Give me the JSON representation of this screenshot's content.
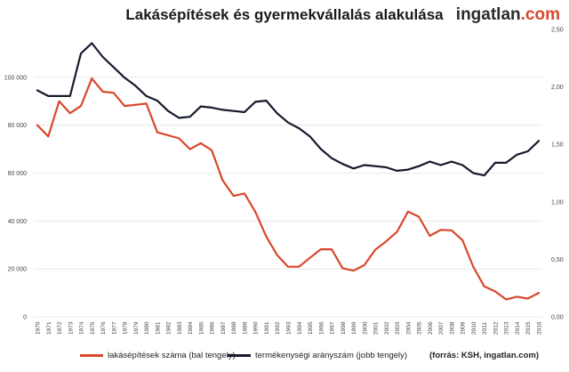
{
  "header": {
    "title": "Lakásépítések és gyermekvállalás alakulása",
    "brand_name": "ingatlan",
    "brand_dot": ".",
    "brand_tld": "com"
  },
  "legend": {
    "series1": "lakásépítések száma (bal tengely)",
    "series2": "termékenységi arányszám (jobb tengely)"
  },
  "source": "(forrás: KSH, ingatlan.com)",
  "colors": {
    "series1": "#d9472b",
    "series2": "#151a2e",
    "grid": "#e3e3e3"
  },
  "chart_data": {
    "type": "line",
    "title": "Lakásépítések és gyermekvállalás alakulása",
    "x": [
      "1970",
      "1971",
      "1972",
      "1973",
      "1974",
      "1975",
      "1976",
      "1977",
      "1978",
      "1979",
      "1980",
      "1981",
      "1982",
      "1983",
      "1984",
      "1985",
      "1986",
      "1987",
      "1988",
      "1989",
      "1990",
      "1991",
      "1992",
      "1993",
      "1994",
      "1995",
      "1996",
      "1997",
      "1998",
      "1999",
      "2000",
      "2001",
      "2002",
      "2003",
      "2004",
      "2005",
      "2006",
      "2007",
      "2008",
      "2009",
      "2010",
      "2011",
      "2012",
      "2013",
      "2014",
      "2015",
      "2016"
    ],
    "y_left": {
      "ylim": [
        0,
        120000
      ],
      "ticks": [
        0,
        20000,
        40000,
        60000,
        80000,
        100000
      ],
      "tick_labels": [
        "0",
        "20 000",
        "40 000",
        "60 000",
        "80 000",
        "100 000"
      ]
    },
    "y_right": {
      "ylim": [
        0,
        2.5
      ],
      "ticks": [
        0,
        0.5,
        1,
        1.5,
        2,
        2.5
      ],
      "tick_labels": [
        "0,00",
        "0,50",
        "1,00",
        "1,50",
        "2,00",
        "2,50"
      ]
    },
    "series": [
      {
        "name": "lakásépítések száma (bal tengely)",
        "axis": "left",
        "values": [
          80000,
          75300,
          90000,
          85000,
          88000,
          99500,
          94000,
          93500,
          88000,
          88500,
          89000,
          77000,
          75800,
          74500,
          70000,
          72500,
          69500,
          57000,
          50500,
          51500,
          43800,
          33500,
          25800,
          20900,
          20900,
          24600,
          28200,
          28200,
          20300,
          19300,
          21600,
          28000,
          31500,
          35500,
          43900,
          41800,
          33800,
          36300,
          36100,
          32000,
          20800,
          12700,
          10600,
          7300,
          8400,
          7600,
          10000
        ]
      },
      {
        "name": "termékenységi arányszám (jobb tengely)",
        "axis": "right",
        "values": [
          1.97,
          1.92,
          1.92,
          1.92,
          2.29,
          2.38,
          2.26,
          2.17,
          2.08,
          2.01,
          1.92,
          1.88,
          1.79,
          1.73,
          1.74,
          1.83,
          1.82,
          1.8,
          1.79,
          1.78,
          1.87,
          1.88,
          1.77,
          1.69,
          1.64,
          1.57,
          1.46,
          1.38,
          1.33,
          1.29,
          1.32,
          1.31,
          1.3,
          1.27,
          1.28,
          1.31,
          1.35,
          1.32,
          1.35,
          1.32,
          1.25,
          1.23,
          1.34,
          1.34,
          1.41,
          1.44,
          1.53
        ]
      }
    ]
  }
}
